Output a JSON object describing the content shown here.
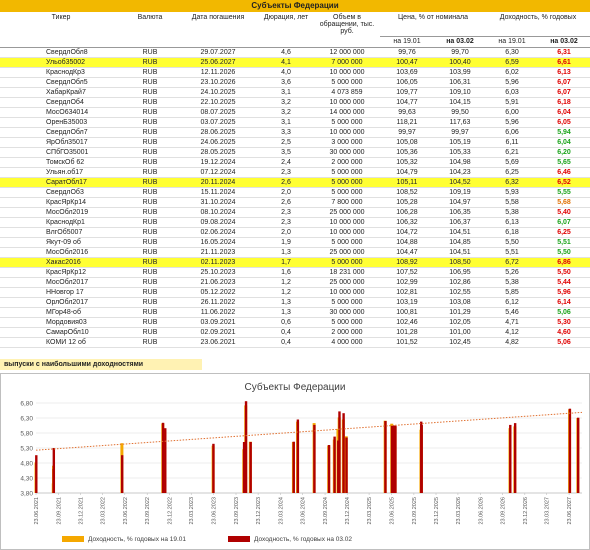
{
  "page": {
    "title": "Субъекты Федерации",
    "caption": "выпуски с наибольшими доходностями"
  },
  "table": {
    "headers": {
      "ticker": "Тикер",
      "currency": "Валюта",
      "maturity": "Дата погашения",
      "duration": "Дюрация, лет",
      "volume": "Объем в обращении, тыс. руб.",
      "price": "Цена, % от номинала",
      "yield": "Доходность, % годовых",
      "price_d1": "на 19.01",
      "price_d2": "на 03.02",
      "yield_d1": "на 19.01",
      "yield_d2": "на 03.02"
    },
    "rows": [
      {
        "ticker": "СвердлОбл8",
        "currency": "RUB",
        "maturity": "29.07.2027",
        "duration": "4,6",
        "volume": "12 000 000",
        "price1": "99,76",
        "price2": "99,70",
        "yield1": "6,30",
        "yield2": "6,31",
        "color": "red",
        "hl": false
      },
      {
        "ticker": "Ульоб35002",
        "currency": "RUB",
        "maturity": "25.06.2027",
        "duration": "4,1",
        "volume": "7 000 000",
        "price1": "100,47",
        "price2": "100,40",
        "yield1": "6,59",
        "yield2": "6,61",
        "color": "red",
        "hl": true
      },
      {
        "ticker": "КраснодКр3",
        "currency": "RUB",
        "maturity": "12.11.2026",
        "duration": "4,0",
        "volume": "10 000 000",
        "price1": "103,69",
        "price2": "103,99",
        "yield1": "6,02",
        "yield2": "6,13",
        "color": "red",
        "hl": false
      },
      {
        "ticker": "СвердлОбл5",
        "currency": "RUB",
        "maturity": "23.10.2026",
        "duration": "3,6",
        "volume": "5 000 000",
        "price1": "106,05",
        "price2": "106,31",
        "yield1": "5,96",
        "yield2": "6,07",
        "color": "red",
        "hl": false
      },
      {
        "ticker": "ХабарКрай7",
        "currency": "RUB",
        "maturity": "24.10.2025",
        "duration": "3,1",
        "volume": "4 073 859",
        "price1": "109,77",
        "price2": "109,10",
        "yield1": "6,03",
        "yield2": "6,07",
        "color": "red",
        "hl": false
      },
      {
        "ticker": "СвердлОб4",
        "currency": "RUB",
        "maturity": "22.10.2025",
        "duration": "3,2",
        "volume": "10 000 000",
        "price1": "104,77",
        "price2": "104,15",
        "yield1": "5,91",
        "yield2": "6,18",
        "color": "red",
        "hl": false
      },
      {
        "ticker": "МосО634014",
        "currency": "RUB",
        "maturity": "08.07.2025",
        "duration": "3,2",
        "volume": "14 000 000",
        "price1": "99,63",
        "price2": "99,50",
        "yield1": "6,00",
        "yield2": "6,04",
        "color": "red",
        "hl": false
      },
      {
        "ticker": "ОренБ35003",
        "currency": "RUB",
        "maturity": "03.07.2025",
        "duration": "3,1",
        "volume": "5 000 000",
        "price1": "118,21",
        "price2": "117,63",
        "yield1": "5,96",
        "yield2": "6,05",
        "color": "red",
        "hl": false
      },
      {
        "ticker": "СвердлОбл7",
        "currency": "RUB",
        "maturity": "28.06.2025",
        "duration": "3,3",
        "volume": "10 000 000",
        "price1": "99,97",
        "price2": "99,97",
        "yield1": "6,06",
        "yield2": "5,94",
        "color": "green",
        "hl": false
      },
      {
        "ticker": "ЯрОбл35017",
        "currency": "RUB",
        "maturity": "24.06.2025",
        "duration": "2,5",
        "volume": "3 000 000",
        "price1": "105,08",
        "price2": "105,19",
        "yield1": "6,11",
        "yield2": "6,04",
        "color": "green",
        "hl": false
      },
      {
        "ticker": "СПбГО35001",
        "currency": "RUB",
        "maturity": "28.05.2025",
        "duration": "3,5",
        "volume": "30 000 000",
        "price1": "105,36",
        "price2": "105,33",
        "yield1": "6,21",
        "yield2": "6,20",
        "color": "green",
        "hl": false
      },
      {
        "ticker": "ТомскОб 62",
        "currency": "RUB",
        "maturity": "19.12.2024",
        "duration": "2,4",
        "volume": "2 000 000",
        "price1": "105,32",
        "price2": "104,98",
        "yield1": "5,69",
        "yield2": "5,65",
        "color": "green",
        "hl": false
      },
      {
        "ticker": "Ульян.об17",
        "currency": "RUB",
        "maturity": "07.12.2024",
        "duration": "2,3",
        "volume": "5 000 000",
        "price1": "104,79",
        "price2": "104,23",
        "yield1": "6,25",
        "yield2": "6,46",
        "color": "red",
        "hl": false
      },
      {
        "ticker": "СаратОбл17",
        "currency": "RUB",
        "maturity": "20.11.2024",
        "duration": "2,6",
        "volume": "5 000 000",
        "price1": "105,11",
        "price2": "104,52",
        "yield1": "6,32",
        "yield2": "6,52",
        "color": "red",
        "hl": true
      },
      {
        "ticker": "СвердлОб3",
        "currency": "RUB",
        "maturity": "15.11.2024",
        "duration": "2,0",
        "volume": "5 000 000",
        "price1": "108,52",
        "price2": "109,19",
        "yield1": "5,93",
        "yield2": "5,55",
        "color": "green",
        "hl": false
      },
      {
        "ticker": "КрасЯрКр14",
        "currency": "RUB",
        "maturity": "31.10.2024",
        "duration": "2,6",
        "volume": "7 800 000",
        "price1": "105,28",
        "price2": "104,97",
        "yield1": "5,58",
        "yield2": "5,68",
        "color": "orange",
        "hl": false
      },
      {
        "ticker": "МосОбл2019",
        "currency": "RUB",
        "maturity": "08.10.2024",
        "duration": "2,3",
        "volume": "25 000 000",
        "price1": "106,28",
        "price2": "106,35",
        "yield1": "5,38",
        "yield2": "5,40",
        "color": "red",
        "hl": false
      },
      {
        "ticker": "КраснодКр1",
        "currency": "RUB",
        "maturity": "09.08.2024",
        "duration": "2,3",
        "volume": "10 000 000",
        "price1": "106,32",
        "price2": "106,37",
        "yield1": "6,13",
        "yield2": "6,07",
        "color": "green",
        "hl": false
      },
      {
        "ticker": "ВлгОб5007",
        "currency": "RUB",
        "maturity": "02.06.2024",
        "duration": "2,0",
        "volume": "10 000 000",
        "price1": "104,72",
        "price2": "104,51",
        "yield1": "6,18",
        "yield2": "6,25",
        "color": "red",
        "hl": false
      },
      {
        "ticker": "Якут-09 об",
        "currency": "RUB",
        "maturity": "16.05.2024",
        "duration": "1,9",
        "volume": "5 000 000",
        "price1": "104,88",
        "price2": "104,85",
        "yield1": "5,50",
        "yield2": "5,51",
        "color": "green",
        "hl": false
      },
      {
        "ticker": "МосОбл2016",
        "currency": "RUB",
        "maturity": "21.11.2023",
        "duration": "1,3",
        "volume": "25 000 000",
        "price1": "104,47",
        "price2": "104,51",
        "yield1": "5,51",
        "yield2": "5,50",
        "color": "green",
        "hl": false
      },
      {
        "ticker": "Хакас2016",
        "currency": "RUB",
        "maturity": "02.11.2023",
        "duration": "1,7",
        "volume": "5 000 000",
        "price1": "108,92",
        "price2": "108,50",
        "yield1": "6,72",
        "yield2": "6,86",
        "color": "red",
        "hl": true
      },
      {
        "ticker": "КрасЯрКр12",
        "currency": "RUB",
        "maturity": "25.10.2023",
        "duration": "1,6",
        "volume": "18 231 000",
        "price1": "107,52",
        "price2": "106,95",
        "yield1": "5,26",
        "yield2": "5,50",
        "color": "red",
        "hl": false
      },
      {
        "ticker": "МосОбл2017",
        "currency": "RUB",
        "maturity": "21.06.2023",
        "duration": "1,2",
        "volume": "25 000 000",
        "price1": "102,99",
        "price2": "102,86",
        "yield1": "5,38",
        "yield2": "5,44",
        "color": "red",
        "hl": false
      },
      {
        "ticker": "ННовгор 17",
        "currency": "RUB",
        "maturity": "05.12.2022",
        "duration": "1,2",
        "volume": "10 000 000",
        "price1": "102,81",
        "price2": "102,55",
        "yield1": "5,85",
        "yield2": "5,96",
        "color": "red",
        "hl": false
      },
      {
        "ticker": "ОрлОбл2017",
        "currency": "RUB",
        "maturity": "26.11.2022",
        "duration": "1,3",
        "volume": "5 000 000",
        "price1": "103,19",
        "price2": "103,08",
        "yield1": "6,12",
        "yield2": "6,14",
        "color": "red",
        "hl": false
      },
      {
        "ticker": "МГор48-об",
        "currency": "RUB",
        "maturity": "11.06.2022",
        "duration": "1,3",
        "volume": "30 000 000",
        "price1": "100,81",
        "price2": "101,29",
        "yield1": "5,46",
        "yield2": "5,06",
        "color": "green",
        "hl": false
      },
      {
        "ticker": "Мордовия03",
        "currency": "RUB",
        "maturity": "03.09.2021",
        "duration": "0,6",
        "volume": "5 000 000",
        "price1": "102,46",
        "price2": "102,05",
        "yield1": "4,71",
        "yield2": "5,30",
        "color": "red",
        "hl": false
      },
      {
        "ticker": "СамарОбл10",
        "currency": "RUB",
        "maturity": "02.09.2021",
        "duration": "0,4",
        "volume": "2 000 000",
        "price1": "101,28",
        "price2": "101,00",
        "yield1": "4,12",
        "yield2": "4,60",
        "color": "red",
        "hl": false
      },
      {
        "ticker": "КОМИ 12 об",
        "currency": "RUB",
        "maturity": "23.06.2021",
        "duration": "0,4",
        "volume": "4 000 000",
        "price1": "101,52",
        "price2": "102,45",
        "yield1": "4,82",
        "yield2": "5,06",
        "color": "red",
        "hl": false
      }
    ]
  },
  "chart_data": {
    "type": "bar",
    "title": "Субъекты Федерации",
    "xlabel": "",
    "ylabel": "",
    "ylim": [
      3.8,
      7.0
    ],
    "yticks": [
      "3,80",
      "4,30",
      "4,80",
      "5,30",
      "5,80",
      "6,30",
      "6,80"
    ],
    "ytick_values": [
      3.8,
      4.3,
      4.8,
      5.3,
      5.8,
      6.3,
      6.8
    ],
    "xtick_labels": [
      "23.06.2021",
      "23.09.2021",
      "23.12.2021",
      "23.03.2022",
      "23.06.2022",
      "23.09.2022",
      "23.12.2022",
      "23.03.2023",
      "23.06.2023",
      "23.09.2023",
      "23.12.2023",
      "23.03.2024",
      "23.06.2024",
      "23.09.2024",
      "23.12.2024",
      "23.03.2025",
      "23.06.2025",
      "23.09.2025",
      "23.12.2025",
      "23.03.2026",
      "23.06.2026",
      "23.09.2026",
      "23.12.2026",
      "23.03.2027",
      "23.06.2027"
    ],
    "x_start": "2021-06-23",
    "x_end": "2027-08-15",
    "series": [
      {
        "name": "Доходность, % годовых на 19.01",
        "color": "#f5a800"
      },
      {
        "name": "Доходность, % годовых на 03.02",
        "color": "#b00000"
      }
    ],
    "points": [
      {
        "date": "2021-06-23",
        "y1": 4.82,
        "y2": 5.06
      },
      {
        "date": "2021-09-02",
        "y1": 4.12,
        "y2": 4.6
      },
      {
        "date": "2021-09-03",
        "y1": 4.71,
        "y2": 5.3
      },
      {
        "date": "2022-06-11",
        "y1": 5.46,
        "y2": 5.06
      },
      {
        "date": "2022-11-26",
        "y1": 6.12,
        "y2": 6.14
      },
      {
        "date": "2022-12-05",
        "y1": 5.85,
        "y2": 5.96
      },
      {
        "date": "2023-06-21",
        "y1": 5.38,
        "y2": 5.44
      },
      {
        "date": "2023-10-25",
        "y1": 5.26,
        "y2": 5.5
      },
      {
        "date": "2023-11-02",
        "y1": 6.72,
        "y2": 6.86
      },
      {
        "date": "2023-11-21",
        "y1": 5.51,
        "y2": 5.5
      },
      {
        "date": "2024-05-16",
        "y1": 5.5,
        "y2": 5.51
      },
      {
        "date": "2024-06-02",
        "y1": 6.18,
        "y2": 6.25
      },
      {
        "date": "2024-08-09",
        "y1": 6.13,
        "y2": 6.07
      },
      {
        "date": "2024-10-08",
        "y1": 5.38,
        "y2": 5.4
      },
      {
        "date": "2024-10-31",
        "y1": 5.58,
        "y2": 5.68
      },
      {
        "date": "2024-11-15",
        "y1": 5.93,
        "y2": 5.55
      },
      {
        "date": "2024-11-20",
        "y1": 6.32,
        "y2": 6.52
      },
      {
        "date": "2024-12-07",
        "y1": 6.25,
        "y2": 6.46
      },
      {
        "date": "2024-12-19",
        "y1": 5.69,
        "y2": 5.65
      },
      {
        "date": "2025-05-28",
        "y1": 6.21,
        "y2": 6.2
      },
      {
        "date": "2025-06-24",
        "y1": 6.11,
        "y2": 6.04
      },
      {
        "date": "2025-06-28",
        "y1": 6.06,
        "y2": 5.94
      },
      {
        "date": "2025-07-03",
        "y1": 5.96,
        "y2": 6.05
      },
      {
        "date": "2025-07-08",
        "y1": 6.0,
        "y2": 6.04
      },
      {
        "date": "2025-10-22",
        "y1": 5.91,
        "y2": 6.18
      },
      {
        "date": "2025-10-24",
        "y1": 6.03,
        "y2": 6.07
      },
      {
        "date": "2026-10-23",
        "y1": 5.96,
        "y2": 6.07
      },
      {
        "date": "2026-11-12",
        "y1": 6.02,
        "y2": 6.13
      },
      {
        "date": "2027-06-25",
        "y1": 6.59,
        "y2": 6.61
      },
      {
        "date": "2027-07-29",
        "y1": 6.3,
        "y2": 6.31
      }
    ],
    "trendline": {
      "color": "#e07030",
      "style": "dotted"
    },
    "legend_position": "bottom",
    "grid": true
  }
}
